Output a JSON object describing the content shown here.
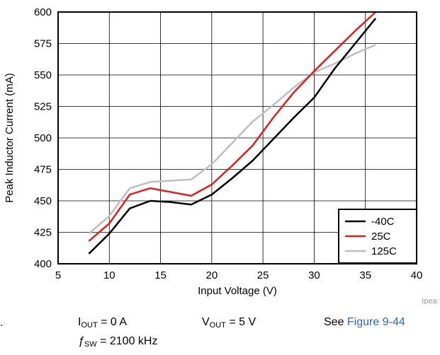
{
  "chart_data": {
    "type": "line",
    "xlabel": "Input Voltage (V)",
    "ylabel": "Peak Inductor Current (mA)",
    "xlim": [
      5,
      40
    ],
    "ylim": [
      400,
      600
    ],
    "xticks": [
      5,
      10,
      15,
      20,
      25,
      30,
      35,
      40
    ],
    "yticks": [
      400,
      425,
      450,
      475,
      500,
      525,
      550,
      575,
      600
    ],
    "grid": true,
    "legend_position": "bottom-right",
    "series": [
      {
        "name": "-40C",
        "color": "#000000",
        "x": [
          8,
          10,
          12,
          14,
          16,
          18,
          20,
          22,
          24,
          26,
          28,
          30,
          32,
          34,
          36
        ],
        "y": [
          408,
          424,
          444,
          450,
          449,
          447,
          455,
          468,
          482,
          499,
          516,
          532,
          555,
          575,
          595
        ]
      },
      {
        "name": "25C",
        "color": "#e0201c",
        "x": [
          8,
          10,
          12,
          14,
          16,
          18,
          20,
          22,
          24,
          26,
          28,
          30,
          32,
          34,
          36
        ],
        "y": [
          418,
          432,
          455,
          460,
          457,
          454,
          463,
          478,
          494,
          516,
          536,
          553,
          569,
          585,
          600
        ]
      },
      {
        "name": "125C",
        "color": "#bfbfbf",
        "x": [
          8,
          10,
          12,
          14,
          16,
          18,
          20,
          22,
          24,
          26,
          28,
          30,
          32,
          34,
          36
        ],
        "y": [
          424,
          438,
          460,
          465,
          466,
          467,
          479,
          496,
          513,
          526,
          540,
          552,
          559,
          567,
          574
        ]
      }
    ]
  },
  "watermark": "Ipea",
  "caption": {
    "dot": ".",
    "iout_symbol": "I",
    "iout_sub": "OUT",
    "iout_value": " = 0 A",
    "vout_symbol": "V",
    "vout_sub": "OUT",
    "vout_value": " = 5 V",
    "see_text": "See ",
    "figure_link": "Figure 9-44",
    "fsw_symbol": "ƒ",
    "fsw_sub": "SW",
    "fsw_value": " = 2100 kHz"
  }
}
